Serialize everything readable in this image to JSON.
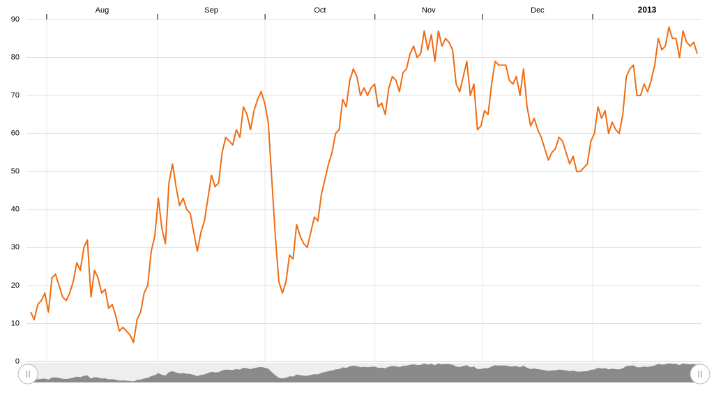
{
  "chart_data": {
    "type": "line",
    "x": [
      0,
      1,
      2,
      3,
      4,
      5,
      6,
      7,
      8,
      9,
      10,
      11,
      12,
      13,
      14,
      15,
      16,
      17,
      18,
      19,
      20,
      21,
      22,
      23,
      24,
      25,
      26,
      27,
      28,
      29,
      30,
      31,
      32,
      33,
      34,
      35,
      36,
      37,
      38,
      39,
      40,
      41,
      42,
      43,
      44,
      45,
      46,
      47,
      48,
      49,
      50,
      51,
      52,
      53,
      54,
      55,
      56,
      57,
      58,
      59,
      60,
      61,
      62,
      63,
      64,
      65,
      66,
      67,
      68,
      69,
      70,
      71,
      72,
      73,
      74,
      75,
      76,
      77,
      78,
      79,
      80,
      81,
      82,
      83,
      84,
      85,
      86,
      87,
      88,
      89,
      90,
      91,
      92,
      93,
      94,
      95,
      96,
      97,
      98,
      99,
      100,
      101,
      102,
      103,
      104,
      105,
      106,
      107,
      108,
      109,
      110,
      111,
      112,
      113,
      114,
      115,
      116,
      117,
      118,
      119,
      120,
      121,
      122,
      123,
      124,
      125,
      126,
      127,
      128,
      129,
      130,
      131,
      132,
      133,
      134,
      135,
      136,
      137,
      138,
      139,
      140,
      141,
      142,
      143,
      144,
      145,
      146,
      147,
      148,
      149,
      150,
      151,
      152,
      153,
      154,
      155,
      156,
      157,
      158,
      159,
      160,
      161,
      162,
      163,
      164,
      165,
      166,
      167,
      168,
      169,
      170,
      171,
      172,
      173,
      174,
      175,
      176,
      177,
      178,
      179,
      180,
      181,
      182,
      183,
      184,
      185,
      186,
      187,
      188
    ],
    "values": [
      13,
      11,
      15,
      16,
      18,
      13,
      22,
      23,
      20,
      17,
      16,
      18,
      21,
      26,
      24,
      30,
      32,
      17,
      24,
      22,
      18,
      19,
      14,
      15,
      12,
      8,
      9,
      8,
      7,
      5,
      11,
      13,
      18,
      20,
      29,
      33,
      43,
      35,
      31,
      47,
      52,
      46,
      41,
      43,
      40,
      39,
      34,
      29,
      34,
      37,
      43,
      49,
      46,
      47,
      55,
      59,
      58,
      57,
      61,
      59,
      67,
      65,
      61,
      66,
      69,
      71,
      68,
      63,
      48,
      33,
      21,
      18,
      21,
      28,
      27,
      36,
      33,
      31,
      30,
      34,
      38,
      37,
      44,
      48,
      52,
      55,
      60,
      61,
      69,
      67,
      74,
      77,
      75,
      70,
      72,
      70,
      72,
      73,
      67,
      68,
      65,
      72,
      75,
      74,
      71,
      76,
      77,
      81,
      83,
      80,
      81,
      87,
      82,
      86,
      79,
      87,
      83,
      85,
      84,
      82,
      73,
      71,
      75,
      79,
      70,
      73,
      61,
      62,
      66,
      65,
      73,
      79,
      78,
      78,
      78,
      74,
      73,
      75,
      70,
      77,
      67,
      62,
      64,
      61,
      59,
      56,
      53,
      55,
      56,
      59,
      58,
      55,
      52,
      54,
      50,
      50,
      51,
      52,
      58,
      60,
      67,
      64,
      66,
      60,
      63,
      61,
      60,
      65,
      75,
      77,
      78,
      70,
      70,
      73,
      71,
      74,
      78,
      85,
      82,
      83,
      88,
      85,
      85,
      80,
      87,
      84,
      83,
      84,
      81
    ],
    "color": "#ef6c12",
    "xlim": [
      0,
      188
    ],
    "xticks": [
      {
        "value": 4.5,
        "label": "Aug"
      },
      {
        "value": 35.8,
        "label": "Sep"
      },
      {
        "value": 66.1,
        "label": "Oct"
      },
      {
        "value": 97.1,
        "label": "Nov"
      },
      {
        "value": 127.4,
        "label": "Dec"
      },
      {
        "value": 158.5,
        "label": "2013"
      }
    ],
    "ylim": [
      0,
      90
    ],
    "yticks": [
      0,
      10,
      20,
      30,
      40,
      50,
      60,
      70,
      80,
      90
    ],
    "grid": true
  }
}
